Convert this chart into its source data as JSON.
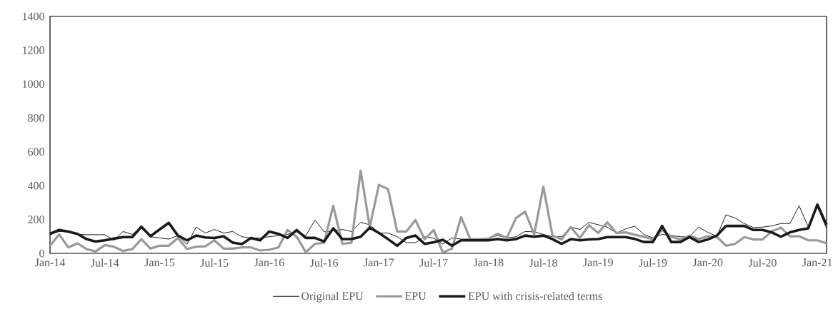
{
  "chart_data": {
    "type": "line",
    "categories": [
      "Jan-14",
      null,
      null,
      null,
      null,
      null,
      "Jul-14",
      null,
      null,
      null,
      null,
      null,
      "Jan-15",
      null,
      null,
      null,
      null,
      null,
      "Jul-15",
      null,
      null,
      null,
      null,
      null,
      "Jan-16",
      null,
      null,
      null,
      null,
      null,
      "Jul-16",
      null,
      null,
      null,
      null,
      null,
      "Jan-17",
      null,
      null,
      null,
      null,
      null,
      "Jul-17",
      null,
      null,
      null,
      null,
      null,
      "Jan-18",
      null,
      null,
      null,
      null,
      null,
      "Jul-18",
      null,
      null,
      null,
      null,
      null,
      "Jan-19",
      null,
      null,
      null,
      null,
      null,
      "Jul-19",
      null,
      null,
      null,
      null,
      null,
      "Jan-20",
      null,
      null,
      null,
      null,
      null,
      "Jul-20",
      null,
      null,
      null,
      null,
      null,
      "Jan-21",
      null
    ],
    "series": [
      {
        "name": "Original EPU",
        "color": "#000000",
        "values": [
          112,
          129,
          127,
          112,
          110,
          110,
          110,
          77,
          129,
          112,
          155,
          98,
          91,
          84,
          105,
          53,
          155,
          120,
          141,
          120,
          129,
          98,
          91,
          91,
          98,
          105,
          112,
          127,
          105,
          197,
          127,
          134,
          141,
          129,
          183,
          169,
          120,
          120,
          98,
          63,
          63,
          98,
          90,
          55,
          91,
          84,
          84,
          84,
          91,
          105,
          91,
          98,
          129,
          127,
          112,
          98,
          98,
          155,
          141,
          183,
          169,
          155,
          120,
          144,
          160,
          112,
          91,
          112,
          105,
          98,
          98,
          155,
          124,
          101,
          228,
          208,
          176,
          152,
          155,
          162,
          176,
          176,
          281,
          155,
          274,
          148
        ]
      },
      {
        "name": "EPU",
        "color": "#999999",
        "values": [
          45,
          112,
          35,
          59,
          25,
          11,
          49,
          39,
          14,
          25,
          84,
          28,
          45,
          45,
          91,
          25,
          39,
          42,
          77,
          28,
          28,
          35,
          35,
          17,
          21,
          35,
          138,
          98,
          7,
          56,
          63,
          281,
          56,
          63,
          489,
          155,
          405,
          380,
          129,
          129,
          197,
          84,
          138,
          5,
          28,
          214,
          84,
          84,
          87,
          115,
          91,
          208,
          246,
          112,
          394,
          105,
          82,
          155,
          91,
          166,
          120,
          183,
          120,
          124,
          110,
          98,
          82,
          138,
          98,
          82,
          105,
          84,
          101,
          98,
          45,
          56,
          96,
          82,
          82,
          129,
          152,
          101,
          101,
          77,
          77,
          59
        ]
      },
      {
        "name": "EPU with crisis-related terms",
        "color": "#1a1a1a",
        "values": [
          115,
          138,
          129,
          115,
          84,
          70,
          77,
          87,
          96,
          96,
          157,
          101,
          141,
          180,
          105,
          77,
          105,
          94,
          91,
          101,
          63,
          55,
          91,
          77,
          129,
          115,
          91,
          138,
          91,
          91,
          70,
          148,
          84,
          84,
          98,
          152,
          120,
          84,
          45,
          91,
          105,
          56,
          65,
          80,
          45,
          77,
          77,
          77,
          77,
          84,
          77,
          84,
          105,
          98,
          105,
          84,
          56,
          84,
          77,
          82,
          84,
          96,
          96,
          96,
          85,
          67,
          67,
          162,
          67,
          67,
          96,
          67,
          82,
          105,
          162,
          162,
          162,
          138,
          138,
          124,
          98,
          124,
          138,
          148,
          288,
          169
        ]
      }
    ],
    "ylim": [
      0,
      1400
    ],
    "yticks": [
      0,
      200,
      400,
      600,
      800,
      1000,
      1200,
      1400
    ],
    "legend": "bottom"
  }
}
